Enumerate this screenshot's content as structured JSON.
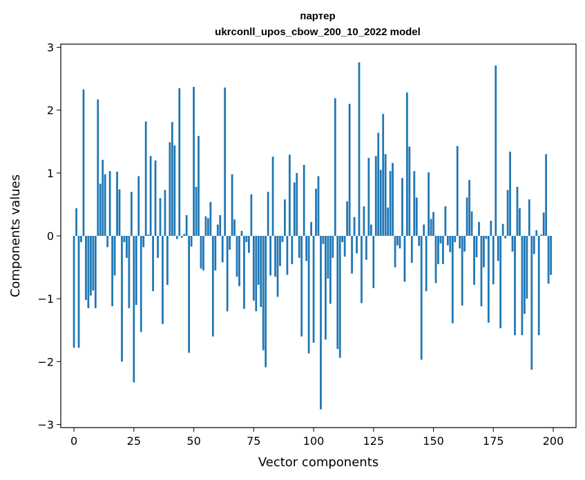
{
  "chart_data": {
    "type": "bar",
    "title_line1": "партер",
    "title_line2": "ukrconll_upos_cbow_200_10_2022 model",
    "xlabel": "Vector components",
    "ylabel": "Components values",
    "xlim": [
      -5.5,
      209.5
    ],
    "ylim": [
      -3.05,
      3.05
    ],
    "xticks": [
      0,
      25,
      50,
      75,
      100,
      125,
      150,
      175,
      200
    ],
    "xtick_labels": [
      "0",
      "25",
      "50",
      "75",
      "100",
      "125",
      "150",
      "175",
      "200"
    ],
    "yticks": [
      -3,
      -2,
      -1,
      0,
      1,
      2,
      3
    ],
    "ytick_labels": [
      "−3",
      "−2",
      "−1",
      "0",
      "1",
      "2",
      "3"
    ],
    "grid": false,
    "bar_color": "#1f77b4",
    "values": [
      -1.78,
      0.44,
      -1.78,
      -0.1,
      2.33,
      -1.02,
      -1.15,
      -0.95,
      -0.87,
      -1.15,
      2.17,
      0.83,
      1.21,
      0.98,
      -0.18,
      1.03,
      -1.12,
      -0.63,
      1.02,
      0.74,
      -2.0,
      -0.1,
      -0.35,
      -1.15,
      0.7,
      -2.33,
      -1.1,
      0.95,
      -1.53,
      -0.18,
      1.82,
      0.02,
      1.27,
      -0.88,
      1.2,
      -0.35,
      0.6,
      -1.4,
      0.73,
      -0.78,
      1.49,
      1.81,
      1.44,
      -0.05,
      2.35,
      -0.03,
      0.03,
      0.33,
      -1.86,
      -0.17,
      2.37,
      0.78,
      1.59,
      -0.52,
      -0.55,
      0.31,
      0.28,
      0.54,
      -1.6,
      -0.55,
      0.18,
      0.33,
      -0.42,
      2.36,
      -1.2,
      -0.22,
      0.98,
      0.26,
      -0.65,
      -0.8,
      0.08,
      -1.16,
      -0.1,
      -0.27,
      0.66,
      -1.03,
      -1.2,
      -0.78,
      -1.13,
      -1.82,
      -2.09,
      0.7,
      -0.63,
      1.26,
      -0.65,
      -0.97,
      -0.48,
      -0.1,
      0.58,
      -0.62,
      1.29,
      -0.45,
      0.85,
      1.0,
      -0.35,
      -1.6,
      1.13,
      -0.4,
      -1.87,
      0.22,
      -1.7,
      0.75,
      0.95,
      -2.76,
      -0.13,
      -1.65,
      -0.68,
      -1.08,
      -0.35,
      2.19,
      -1.8,
      -1.94,
      -0.1,
      -0.33,
      0.55,
      2.1,
      -0.6,
      0.3,
      -0.28,
      2.76,
      -1.07,
      0.47,
      -0.38,
      1.24,
      0.18,
      -0.83,
      1.27,
      1.64,
      1.05,
      1.94,
      1.3,
      0.45,
      1.03,
      1.16,
      -0.5,
      -0.15,
      -0.2,
      0.92,
      -0.73,
      2.28,
      1.42,
      -0.43,
      1.03,
      0.61,
      -0.16,
      -1.97,
      0.18,
      -0.88,
      1.01,
      0.27,
      0.38,
      -0.75,
      -0.45,
      -0.12,
      -0.45,
      0.47,
      -0.15,
      -0.26,
      -1.39,
      -0.1,
      1.43,
      -0.2,
      -1.11,
      -0.25,
      0.61,
      0.89,
      0.39,
      -0.78,
      -0.34,
      0.22,
      -1.12,
      -0.5,
      -0.05,
      -1.38,
      0.24,
      -0.77,
      2.71,
      -0.4,
      -1.47,
      0.19,
      -0.04,
      0.73,
      1.34,
      -0.25,
      -1.58,
      0.78,
      0.44,
      -1.58,
      -1.24,
      -1.0,
      0.58,
      -2.13,
      -0.29,
      0.09,
      -1.58,
      0.02,
      0.37,
      1.3,
      -0.76,
      -0.62
    ]
  }
}
